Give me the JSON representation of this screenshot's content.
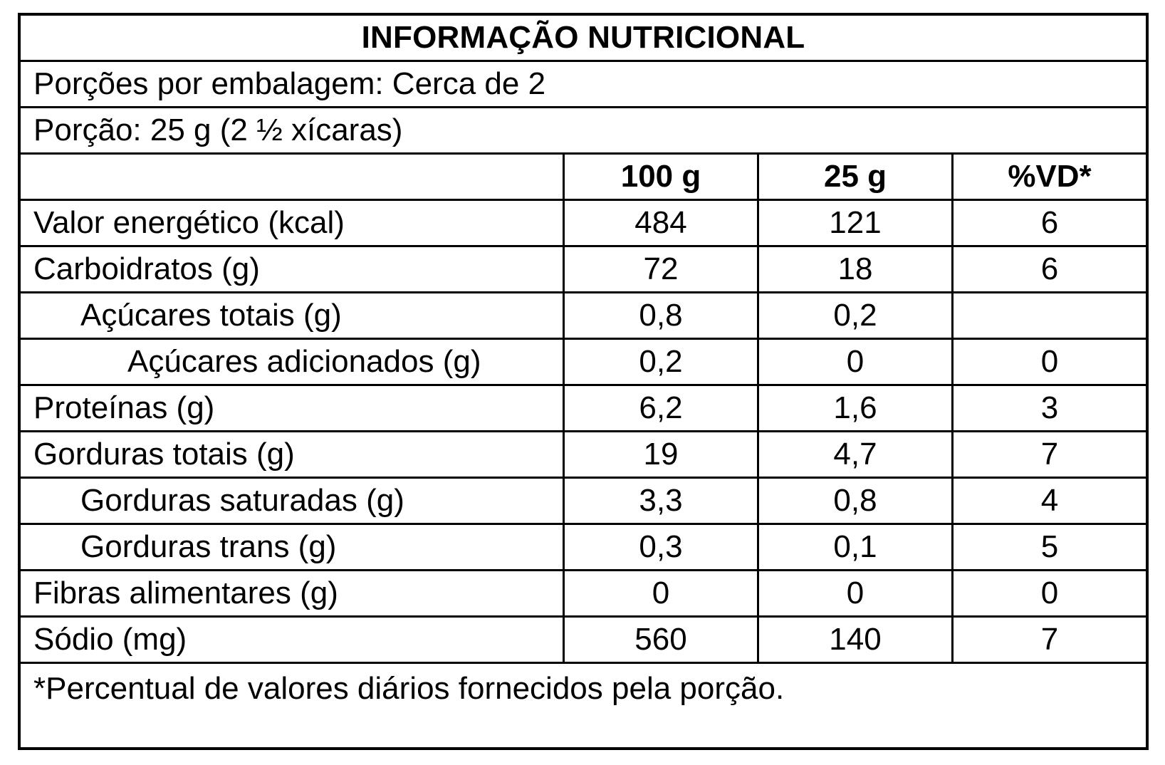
{
  "title": "INFORMAÇÃO NUTRICIONAL",
  "servings_per_package": "Porções por embalagem: Cerca de 2",
  "serving_size": "Porção: 25 g (2 ½ xícaras)",
  "columns": [
    "",
    "100 g",
    "25 g",
    "%VD*"
  ],
  "rows": [
    {
      "name": "Valor energético (kcal)",
      "per100": "484",
      "per_portion": "121",
      "vd": "6"
    },
    {
      "name": "Carboidratos (g)",
      "per100": "72",
      "per_portion": "18",
      "vd": "6"
    },
    {
      "name": "Açúcares totais (g)",
      "per100": "0,8",
      "per_portion": "0,2",
      "vd": ""
    },
    {
      "name": "Açúcares adicionados (g)",
      "per100": "0,2",
      "per_portion": "0",
      "vd": "0"
    },
    {
      "name": "Proteínas (g)",
      "per100": "6,2",
      "per_portion": "1,6",
      "vd": "3"
    },
    {
      "name": "Gorduras totais (g)",
      "per100": "19",
      "per_portion": "4,7",
      "vd": "7"
    },
    {
      "name": "Gorduras saturadas (g)",
      "per100": "3,3",
      "per_portion": "0,8",
      "vd": "4"
    },
    {
      "name": "Gorduras trans (g)",
      "per100": "0,3",
      "per_portion": "0,1",
      "vd": "5"
    },
    {
      "name": "Fibras alimentares (g)",
      "per100": "0",
      "per_portion": "0",
      "vd": "0"
    },
    {
      "name": "Sódio (mg)",
      "per100": "560",
      "per_portion": "140",
      "vd": "7"
    }
  ],
  "footnote": "*Percentual de valores diários fornecidos pela porção."
}
